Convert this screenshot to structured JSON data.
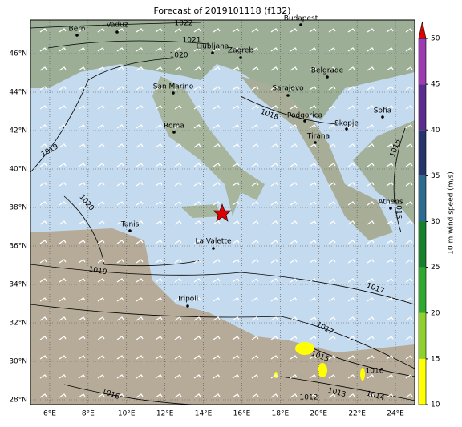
{
  "title": "Forecast of 2019101118 (f132)",
  "map": {
    "lon_lim": [
      5,
      25
    ],
    "lat_lim": [
      27.75,
      47.75
    ],
    "lon_ticks": [
      {
        "value": 6,
        "label": "6°E"
      },
      {
        "value": 8,
        "label": "8°E"
      },
      {
        "value": 10,
        "label": "10°E"
      },
      {
        "value": 12,
        "label": "12°E"
      },
      {
        "value": 14,
        "label": "14°E"
      },
      {
        "value": 16,
        "label": "16°E"
      },
      {
        "value": 18,
        "label": "18°E"
      },
      {
        "value": 20,
        "label": "20°E"
      },
      {
        "value": 22,
        "label": "22°E"
      },
      {
        "value": 24,
        "label": "24°E"
      }
    ],
    "lat_ticks": [
      {
        "value": 28,
        "label": "28°N"
      },
      {
        "value": 30,
        "label": "30°N"
      },
      {
        "value": 32,
        "label": "32°N"
      },
      {
        "value": 34,
        "label": "34°N"
      },
      {
        "value": 36,
        "label": "36°N"
      },
      {
        "value": 38,
        "label": "38°N"
      },
      {
        "value": 40,
        "label": "40°N"
      },
      {
        "value": 42,
        "label": "42°N"
      },
      {
        "value": 44,
        "label": "44°N"
      },
      {
        "value": 46,
        "label": "46°N"
      }
    ],
    "cities": [
      "Bern",
      "Vaduz",
      "Budapest",
      "Ljubljana",
      "Zagreb",
      "San Marino",
      "Sarajevo",
      "Belgrade",
      "Roma",
      "Podgorica",
      "Skopje",
      "Tirana",
      "Sofia",
      "Athens",
      "Tunis",
      "La Valette",
      "Tripoli"
    ],
    "isobar_labels": [
      "1022",
      "1021",
      "1020",
      "1018",
      "1019",
      "1020",
      "1019",
      "1016",
      "1015",
      "1017",
      "1017",
      "1015",
      "1016",
      "1013",
      "1014",
      "1012",
      "1016"
    ]
  },
  "colorbar": {
    "label": "10 m wind speed (m/s)",
    "lim": [
      10,
      50
    ],
    "ticks": [
      10,
      15,
      20,
      25,
      30,
      35,
      40,
      45,
      50
    ],
    "colors": [
      "#ffff00",
      "#8fd12a",
      "#2fa82f",
      "#17802c",
      "#2a6b8f",
      "#25356b",
      "#5a2a8f",
      "#9c3ab2"
    ],
    "over_color": "#e00000"
  }
}
